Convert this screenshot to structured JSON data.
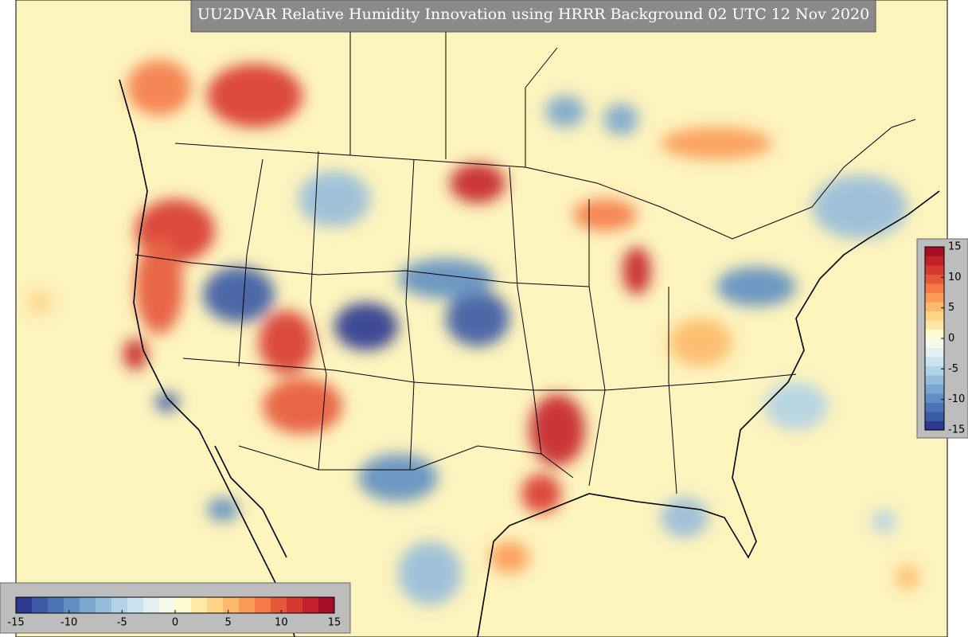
{
  "title": "UU2DVAR Relative Humidity Innovation using HRRR Background 02 UTC 12 Nov 2020",
  "colormap": [
    "#2b3990",
    "#3a5aa6",
    "#4a74b4",
    "#5f8fc2",
    "#7aa6cf",
    "#95bcdb",
    "#b1d2e7",
    "#cae3ef",
    "#e2f0f3",
    "#f6fbe9",
    "#fefbd0",
    "#fee8a3",
    "#fdd386",
    "#fdb96b",
    "#fa9a57",
    "#f57a48",
    "#e6573a",
    "#d8392e",
    "#c4202a",
    "#a50f26"
  ],
  "colorbars": [
    {
      "orientation": "horizontal",
      "lim": [
        -15,
        15
      ],
      "ticks": [
        -15,
        -10,
        -5,
        0,
        5,
        10,
        15
      ]
    },
    {
      "orientation": "vertical",
      "lim": [
        -15,
        15
      ],
      "ticks": [
        15,
        10,
        5,
        0,
        -5,
        -10,
        -15
      ]
    }
  ]
}
